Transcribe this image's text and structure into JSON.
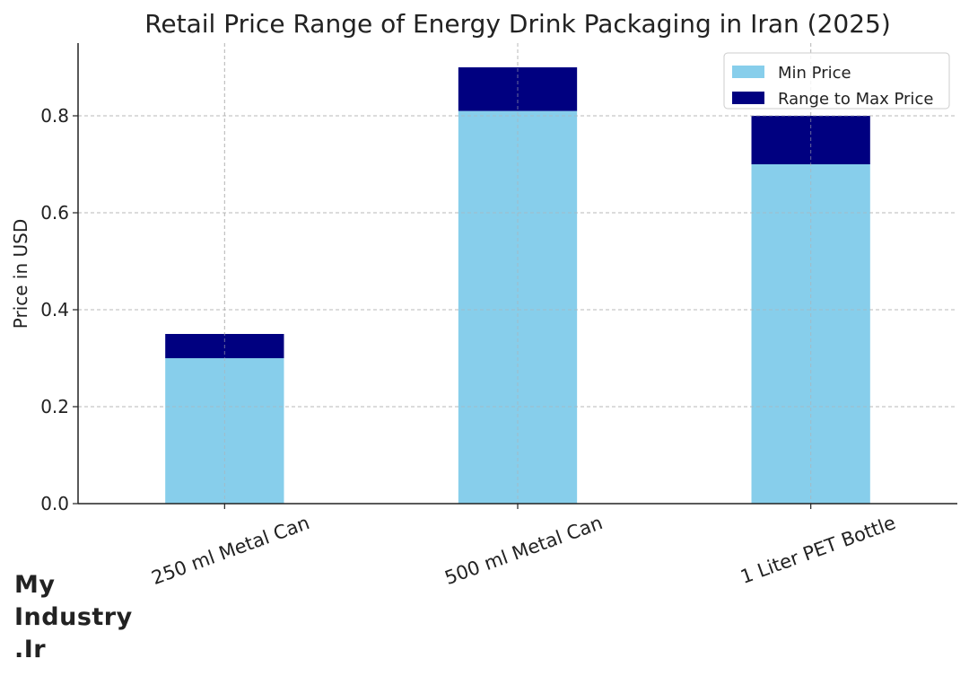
{
  "chart_data": {
    "type": "bar",
    "stacked": true,
    "title": "Retail Price Range of Energy Drink Packaging in Iran (2025)",
    "xlabel": "",
    "ylabel": "Price in USD",
    "categories": [
      "250 ml Metal Can",
      "500 ml Metal Can",
      "1 Liter PET Bottle"
    ],
    "series": [
      {
        "name": "Min Price",
        "values": [
          0.3,
          0.81,
          0.7
        ],
        "color": "#87ceeb"
      },
      {
        "name": "Range to Max Price",
        "values": [
          0.05,
          0.09,
          0.1
        ],
        "color": "#000080"
      }
    ],
    "ylim": [
      0,
      0.95
    ],
    "yticks": [
      0.0,
      0.2,
      0.4,
      0.6,
      0.8
    ],
    "ytick_labels": [
      "0.0",
      "0.2",
      "0.4",
      "0.6",
      "0.8"
    ],
    "grid": true,
    "legend_position": "top-right"
  },
  "watermark": {
    "line1": "My",
    "line2": "Industry",
    "line3": ".Ir"
  }
}
